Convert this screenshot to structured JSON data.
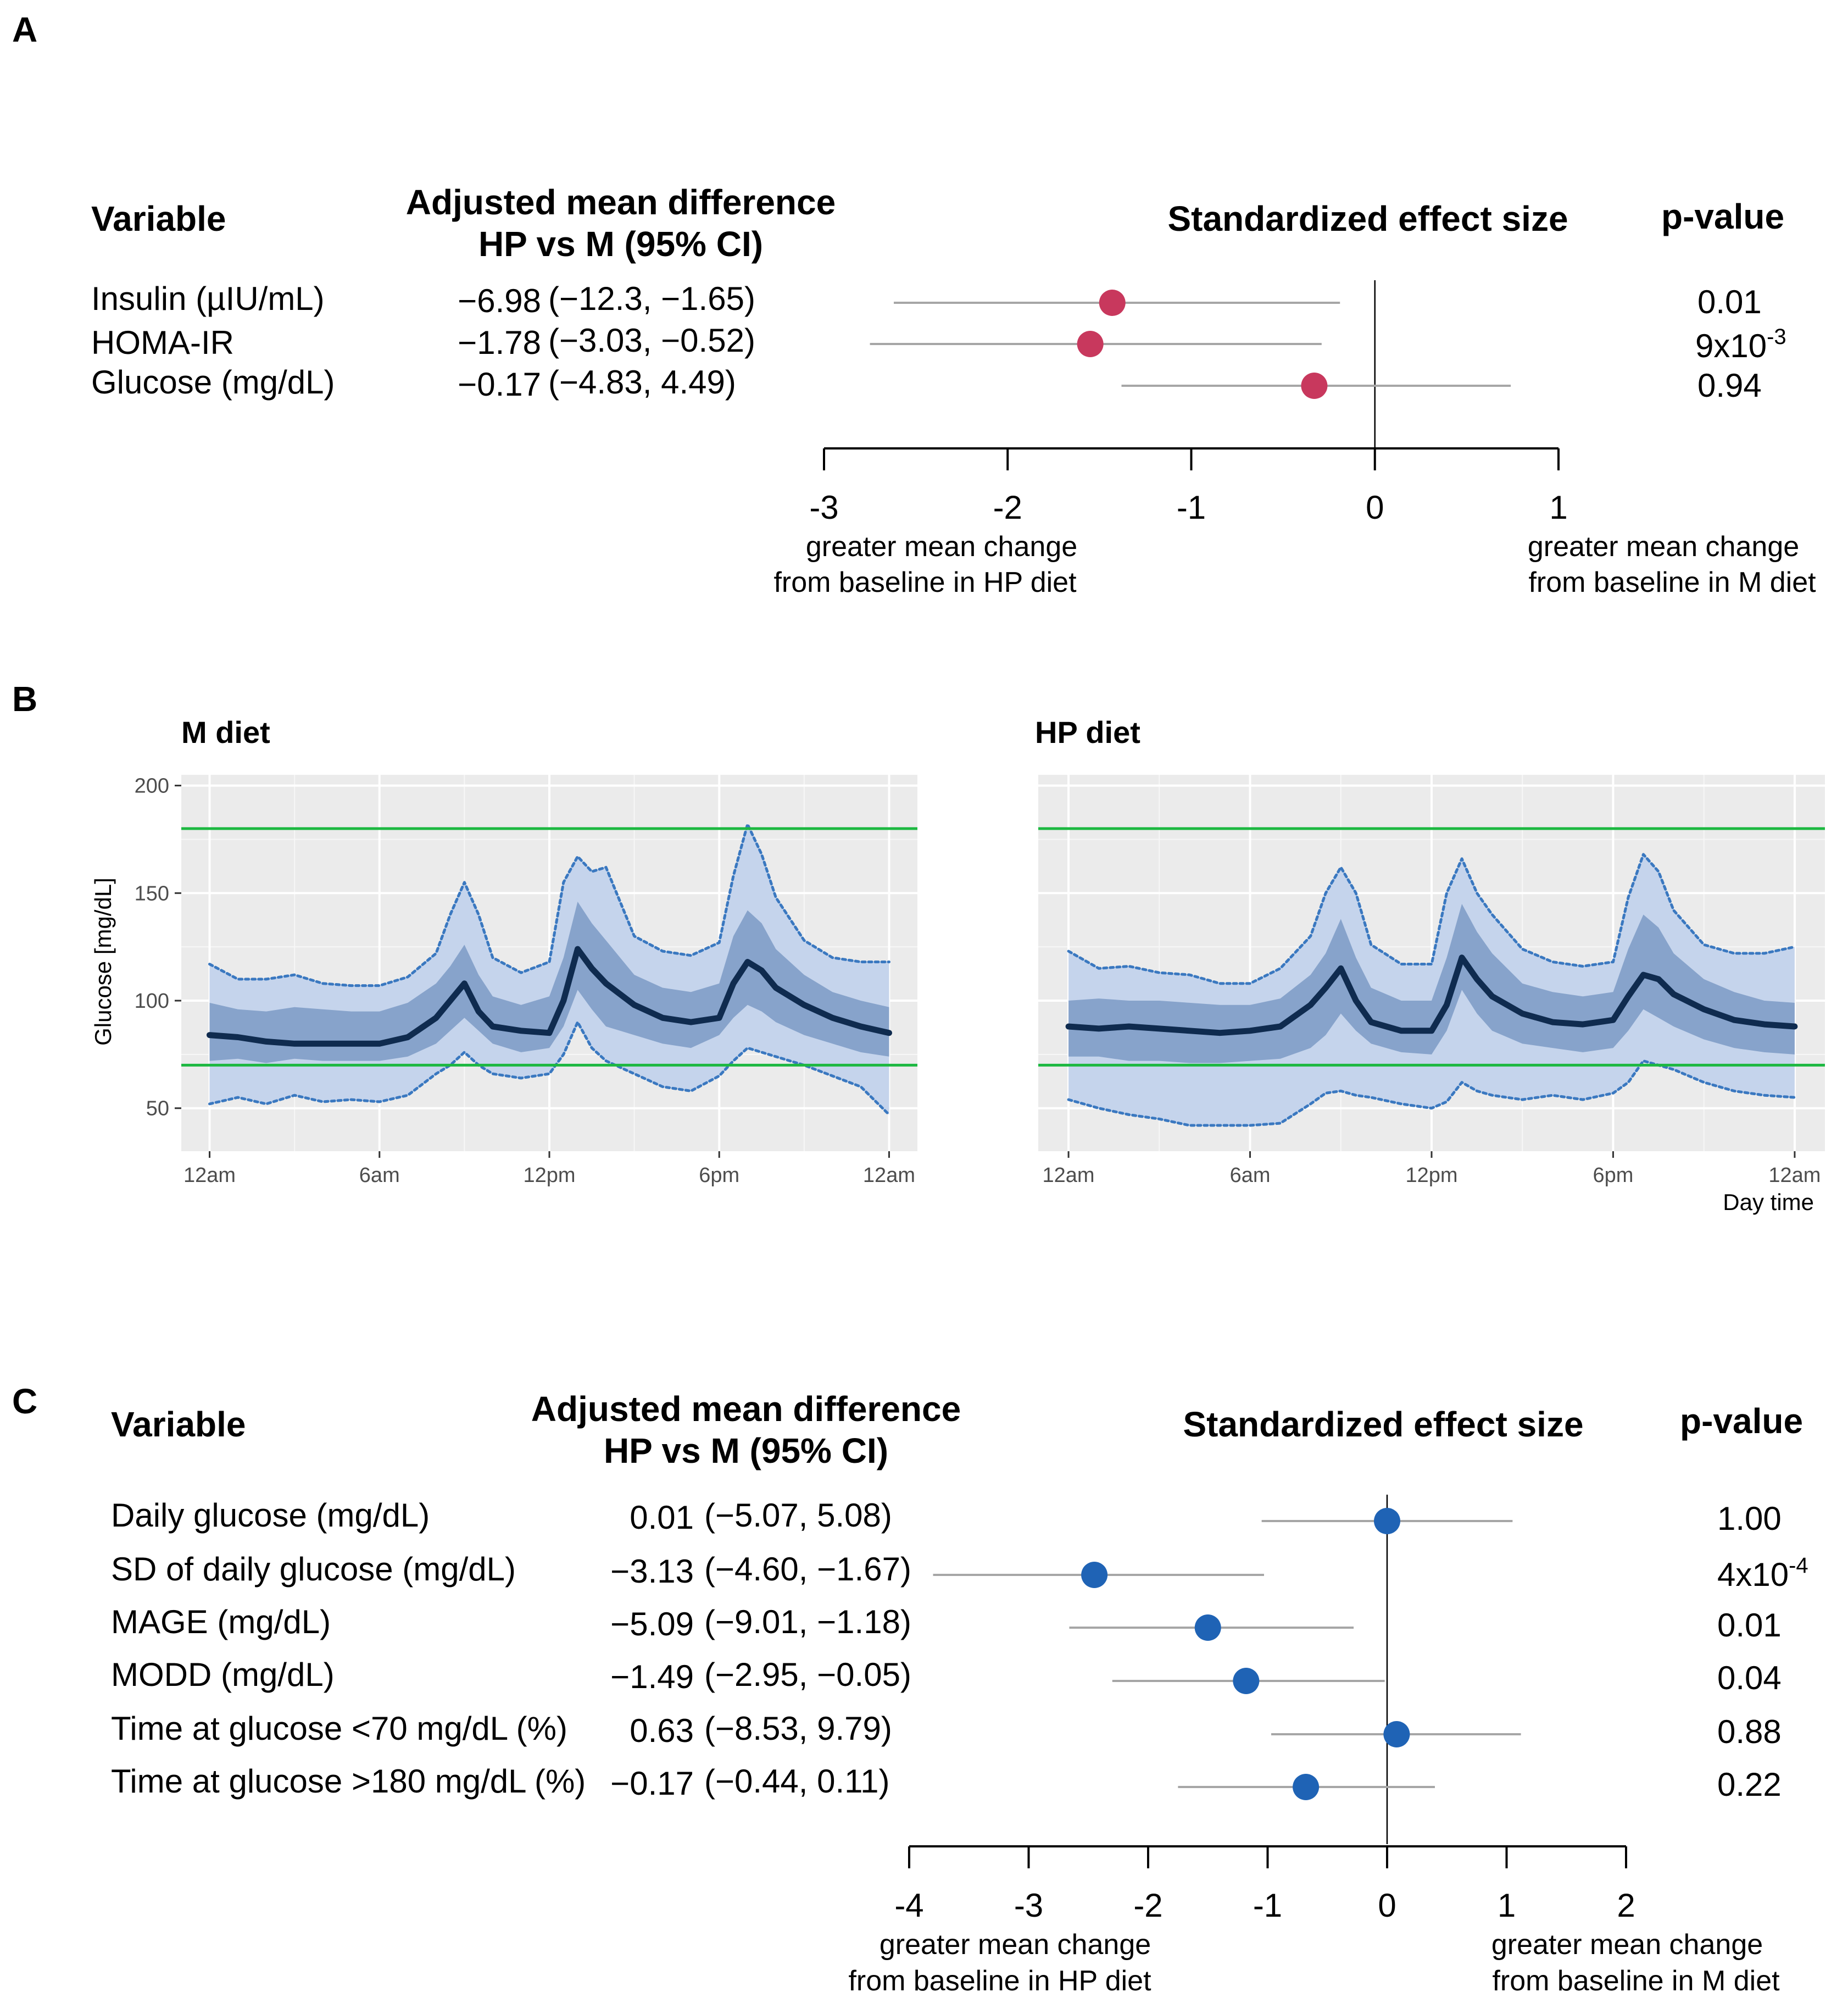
{
  "panels": {
    "A": {
      "letter": "A",
      "headers": {
        "variable": "Variable",
        "diff_line1": "Adjusted mean difference",
        "diff_line2": "HP vs M (95% CI)",
        "effect": "Standardized effect size",
        "pvalue": "p-value"
      },
      "rows": [
        {
          "label": "Insulin (µIU/mL)",
          "estimate": "−6.98",
          "ci": "(−12.3, −1.65)",
          "pvalue": "0.01"
        },
        {
          "label": "HOMA-IR",
          "estimate": "−1.78",
          "ci": "(−3.03, −0.52)",
          "pvalue": "9x10",
          "pvalue_exp": "-3"
        },
        {
          "label": "Glucose (mg/dL)",
          "estimate": "−0.17",
          "ci": "(−4.83, 4.49)",
          "pvalue": "0.94"
        }
      ],
      "axis_ticks": [
        "-3",
        "-2",
        "-1",
        "0",
        "1"
      ],
      "left_note": [
        "greater mean change",
        "from baseline in HP diet"
      ],
      "right_note": [
        "greater mean change",
        "from baseline in M diet"
      ]
    },
    "B": {
      "letter": "B",
      "ylabel": "Glucose [mg/dL]",
      "xlabel": "Day time",
      "y_ticks": [
        "200",
        "150",
        "100",
        "50"
      ],
      "x_ticks": [
        "12am",
        "6am",
        "12pm",
        "6pm",
        "12am"
      ],
      "facets": [
        {
          "title": "M diet"
        },
        {
          "title": "HP diet"
        }
      ]
    },
    "C": {
      "letter": "C",
      "headers": {
        "variable": "Variable",
        "diff_line1": "Adjusted mean difference",
        "diff_line2": "HP vs M (95% CI)",
        "effect": "Standardized effect size",
        "pvalue": "p-value"
      },
      "rows": [
        {
          "label": "Daily glucose (mg/dL)",
          "estimate": "0.01",
          "ci": "(−5.07, 5.08)",
          "pvalue": "1.00"
        },
        {
          "label": "SD of daily glucose (mg/dL)",
          "estimate": "−3.13",
          "ci": "(−4.60, −1.67)",
          "pvalue": "4x10",
          "pvalue_exp": "-4"
        },
        {
          "label": "MAGE (mg/dL)",
          "estimate": "−5.09",
          "ci": "(−9.01, −1.18)",
          "pvalue": "0.01"
        },
        {
          "label": "MODD (mg/dL)",
          "estimate": "−1.49",
          "ci": "(−2.95, −0.05)",
          "pvalue": "0.04"
        },
        {
          "label": "Time at glucose <70 mg/dL (%)",
          "estimate": "0.63",
          "ci": "(−8.53, 9.79)",
          "pvalue": "0.88"
        },
        {
          "label": "Time at glucose >180 mg/dL (%)",
          "estimate": "−0.17",
          "ci": "(−0.44, 0.11)",
          "pvalue": "0.22"
        }
      ],
      "axis_ticks": [
        "-4",
        "-3",
        "-2",
        "-1",
        "0",
        "1",
        "2"
      ],
      "left_note": [
        "greater mean change",
        "from baseline in HP diet"
      ],
      "right_note": [
        "greater mean change",
        "from baseline in M diet"
      ]
    }
  },
  "chart_data": [
    {
      "id": "A",
      "type": "scatter",
      "title": "Standardized effect size",
      "xlim": [
        -3,
        1
      ],
      "xticks": [
        -3,
        -2,
        -1,
        0,
        1
      ],
      "reference_line": 0,
      "point_color": "#c8385d",
      "whisker_color": "#a6a6a6",
      "series": [
        {
          "name": "Insulin (µIU/mL)",
          "estimate": -1.43,
          "lower": -2.62,
          "upper": -0.19
        },
        {
          "name": "HOMA-IR",
          "estimate": -1.55,
          "lower": -2.75,
          "upper": -0.29
        },
        {
          "name": "Glucose (mg/dL)",
          "estimate": -0.33,
          "lower": -1.38,
          "upper": 0.74
        }
      ]
    },
    {
      "id": "B",
      "type": "area",
      "xlabel": "Day time",
      "ylabel": "Glucose [mg/dL]",
      "ylim": [
        30,
        205
      ],
      "xlim": [
        -1,
        25
      ],
      "yticks": [
        50,
        100,
        150,
        200
      ],
      "xticks": [
        0,
        6,
        12,
        18,
        24
      ],
      "xtick_labels": [
        "12am",
        "6am",
        "12pm",
        "6pm",
        "12am"
      ],
      "reference_lines": [
        70,
        180
      ],
      "colors": {
        "outer_band": "#c5d4ec",
        "inner_band": "#87a3cb",
        "median": "#0f2b4f",
        "bounds": "#3a78c0",
        "reference": "#1cb841"
      },
      "x": [
        0,
        1,
        2,
        3,
        4,
        5,
        6,
        7,
        8,
        8.5,
        9,
        9.5,
        10,
        11,
        12,
        12.5,
        13,
        13.5,
        14,
        15,
        16,
        17,
        18,
        18.5,
        19,
        19.5,
        20,
        21,
        22,
        23,
        24
      ],
      "facets": [
        {
          "name": "M diet",
          "p05": [
            52,
            55,
            52,
            56,
            53,
            54,
            53,
            56,
            66,
            70,
            76,
            70,
            66,
            64,
            66,
            75,
            90,
            78,
            72,
            66,
            60,
            58,
            65,
            72,
            78,
            76,
            74,
            70,
            65,
            60,
            47
          ],
          "p25": [
            72,
            73,
            71,
            73,
            72,
            72,
            72,
            74,
            80,
            86,
            92,
            86,
            80,
            76,
            78,
            88,
            105,
            96,
            88,
            84,
            80,
            78,
            84,
            92,
            98,
            95,
            90,
            84,
            80,
            76,
            74
          ],
          "median": [
            84,
            83,
            81,
            80,
            80,
            80,
            80,
            83,
            92,
            100,
            108,
            95,
            88,
            86,
            85,
            100,
            124,
            115,
            108,
            98,
            92,
            90,
            92,
            108,
            118,
            114,
            106,
            98,
            92,
            88,
            85
          ],
          "p75": [
            99,
            96,
            95,
            97,
            96,
            95,
            95,
            99,
            108,
            116,
            126,
            112,
            102,
            98,
            102,
            120,
            146,
            136,
            128,
            112,
            106,
            104,
            108,
            130,
            142,
            136,
            124,
            112,
            104,
            100,
            97
          ],
          "p95": [
            117,
            110,
            110,
            112,
            108,
            107,
            107,
            111,
            122,
            140,
            155,
            140,
            120,
            113,
            118,
            155,
            167,
            160,
            162,
            130,
            123,
            121,
            127,
            158,
            182,
            168,
            148,
            128,
            120,
            118,
            118
          ]
        },
        {
          "name": "HP diet",
          "p05": [
            54,
            50,
            47,
            45,
            42,
            42,
            42,
            43,
            52,
            57,
            58,
            56,
            55,
            52,
            50,
            53,
            62,
            58,
            56,
            54,
            56,
            54,
            57,
            62,
            72,
            70,
            68,
            62,
            58,
            56,
            55
          ],
          "p25": [
            74,
            74,
            72,
            72,
            71,
            71,
            72,
            73,
            78,
            84,
            94,
            86,
            80,
            76,
            75,
            86,
            105,
            94,
            86,
            80,
            78,
            76,
            78,
            86,
            96,
            92,
            88,
            82,
            78,
            76,
            75
          ],
          "median": [
            88,
            87,
            88,
            87,
            86,
            85,
            86,
            88,
            98,
            106,
            115,
            100,
            90,
            86,
            86,
            98,
            120,
            110,
            102,
            94,
            90,
            89,
            91,
            102,
            112,
            110,
            103,
            96,
            91,
            89,
            88
          ],
          "p75": [
            100,
            101,
            100,
            100,
            99,
            98,
            98,
            101,
            112,
            122,
            138,
            120,
            106,
            100,
            100,
            120,
            145,
            132,
            122,
            108,
            104,
            102,
            104,
            124,
            140,
            134,
            122,
            110,
            104,
            100,
            99
          ],
          "p95": [
            123,
            115,
            116,
            113,
            112,
            108,
            108,
            115,
            130,
            150,
            162,
            150,
            126,
            117,
            117,
            150,
            166,
            150,
            140,
            124,
            118,
            116,
            118,
            148,
            168,
            160,
            142,
            126,
            122,
            122,
            125
          ]
        }
      ]
    },
    {
      "id": "C",
      "type": "scatter",
      "title": "Standardized effect size",
      "xlim": [
        -4,
        2
      ],
      "xticks": [
        -4,
        -3,
        -2,
        -1,
        0,
        1,
        2
      ],
      "reference_line": 0,
      "point_color": "#1f63b5",
      "whisker_color": "#a6a6a6",
      "series": [
        {
          "name": "Daily glucose (mg/dL)",
          "estimate": 0.0,
          "lower": -1.05,
          "upper": 1.05
        },
        {
          "name": "SD of daily glucose (mg/dL)",
          "estimate": -2.45,
          "lower": -3.8,
          "upper": -1.03
        },
        {
          "name": "MAGE (mg/dL)",
          "estimate": -1.5,
          "lower": -2.66,
          "upper": -0.28
        },
        {
          "name": "MODD (mg/dL)",
          "estimate": -1.18,
          "lower": -2.3,
          "upper": -0.02
        },
        {
          "name": "Time at glucose <70 mg/dL (%)",
          "estimate": 0.08,
          "lower": -0.97,
          "upper": 1.12
        },
        {
          "name": "Time at glucose >180 mg/dL (%)",
          "estimate": -0.68,
          "lower": -1.75,
          "upper": 0.4
        }
      ]
    }
  ]
}
